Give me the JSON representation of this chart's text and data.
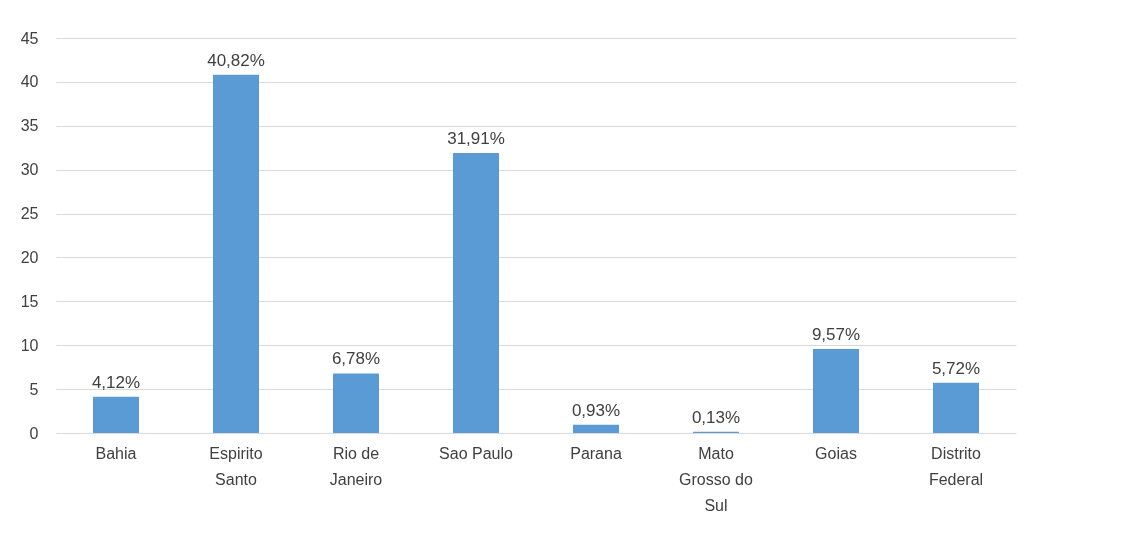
{
  "chart_data": {
    "type": "bar",
    "categories": [
      "Bahia",
      "Espirito Santo",
      "Rio de Janeiro",
      "Sao Paulo",
      "Parana",
      "Mato Grosso do Sul",
      "Goias",
      "Distrito Federal"
    ],
    "values": [
      4.12,
      40.82,
      6.78,
      31.91,
      0.93,
      0.13,
      9.57,
      5.72
    ],
    "value_labels": [
      "4,12%",
      "40,82%",
      "6,78%",
      "31,91%",
      "0,93%",
      "0,13%",
      "9,57%",
      "5,72%"
    ],
    "color": "#5b9bd5",
    "ylim": [
      0,
      45
    ],
    "yticks": [
      0,
      5,
      10,
      15,
      20,
      25,
      30,
      35,
      40,
      45
    ],
    "grid": "y"
  }
}
